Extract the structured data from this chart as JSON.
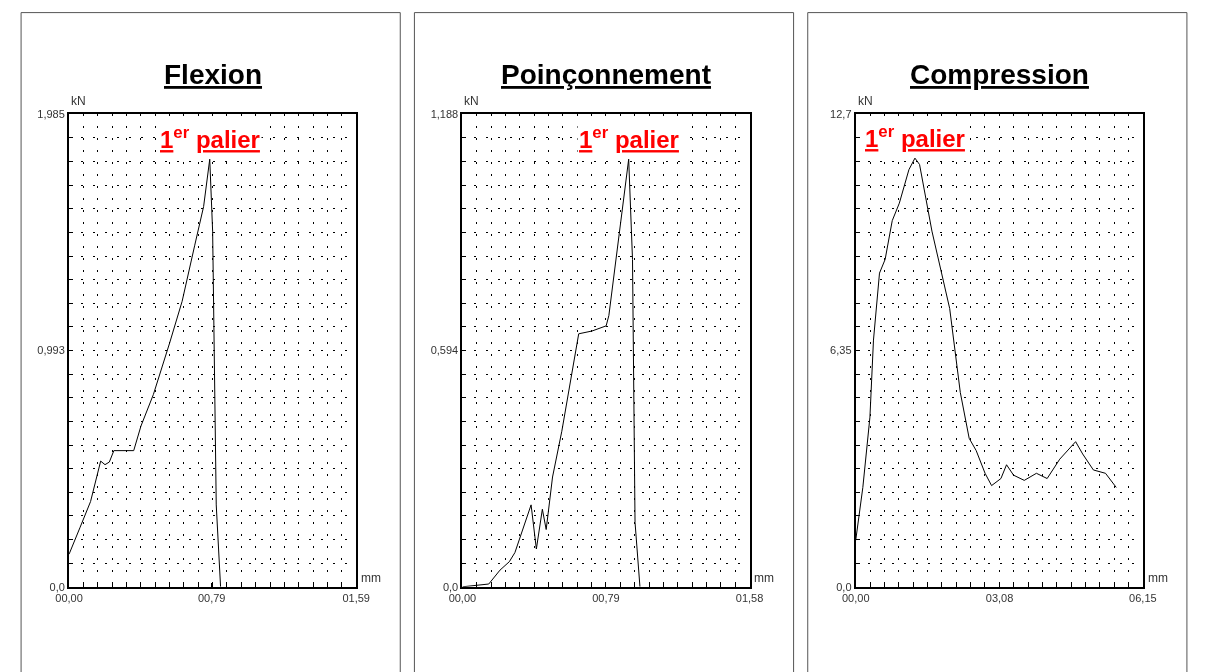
{
  "chart_data": [
    {
      "type": "line",
      "title": "Flexion",
      "xlabel": "mm",
      "ylabel": "kN",
      "grid": true,
      "xlim": [
        0,
        1.59
      ],
      "ylim": [
        0,
        1.985
      ],
      "xticks": [
        {
          "value": 0,
          "label": "00,00"
        },
        {
          "value": 0.79,
          "label": "00,79"
        },
        {
          "value": 1.59,
          "label": "01,59"
        }
      ],
      "yticks": [
        {
          "value": 0,
          "label": "0,0"
        },
        {
          "value": 0.993,
          "label": "0,993"
        },
        {
          "value": 1.985,
          "label": "1,985"
        }
      ],
      "annotations": [
        {
          "text": "1$^{er}$ palier",
          "x": 0.779,
          "y": 1.796
        }
      ],
      "series": [
        {
          "color": "#000000",
          "x": [
            0,
            0.06,
            0.119,
            0.175,
            0.199,
            0.223,
            0.248,
            0.358,
            0.398,
            0.467,
            0.556,
            0.626,
            0.696,
            0.745,
            0.779,
            0.795,
            0.815,
            0.839
          ],
          "values": [
            0.137,
            0.248,
            0.358,
            0.528,
            0.513,
            0.524,
            0.572,
            0.572,
            0.675,
            0.808,
            1.022,
            1.199,
            1.435,
            1.597,
            1.796,
            1.494,
            0.344,
            0
          ]
        }
      ]
    },
    {
      "type": "line",
      "title": "Poinçonnement",
      "xlabel": "mm",
      "ylabel": "kN",
      "grid": true,
      "xlim": [
        0,
        1.58
      ],
      "ylim": [
        0,
        1.188
      ],
      "xticks": [
        {
          "value": 0,
          "label": "00,00"
        },
        {
          "value": 0.79,
          "label": "00,79"
        },
        {
          "value": 1.58,
          "label": "01,58"
        }
      ],
      "yticks": [
        {
          "value": 0,
          "label": "0,0"
        },
        {
          "value": 0.594,
          "label": "0,594"
        },
        {
          "value": 1.188,
          "label": "1,188"
        }
      ],
      "annotations": [
        {
          "text": "1$^{er}$ palier",
          "x": 0.915,
          "y": 1.075
        }
      ],
      "series": [
        {
          "color": "#000000",
          "x": [
            0,
            0.145,
            0.207,
            0.258,
            0.289,
            0.378,
            0.407,
            0.44,
            0.461,
            0.496,
            0.547,
            0.64,
            0.713,
            0.791,
            0.806,
            0.915,
            0.936,
            0.95,
            0.977
          ],
          "values": [
            0,
            0.007,
            0.042,
            0.063,
            0.086,
            0.206,
            0.095,
            0.195,
            0.144,
            0.276,
            0.391,
            0.636,
            0.643,
            0.656,
            0.682,
            1.075,
            0.823,
            0.162,
            0
          ]
        }
      ]
    },
    {
      "type": "line",
      "title": "Compression",
      "xlabel": "mm",
      "ylabel": "kN",
      "grid": true,
      "xlim": [
        0,
        6.15
      ],
      "ylim": [
        0,
        12.7
      ],
      "xticks": [
        {
          "value": 0,
          "label": "00,00"
        },
        {
          "value": 3.08,
          "label": "03,08"
        },
        {
          "value": 6.15,
          "label": "06,15"
        }
      ],
      "yticks": [
        {
          "value": 0,
          "label": "0,0"
        },
        {
          "value": 6.35,
          "label": "6,35"
        },
        {
          "value": 12.7,
          "label": "12,7"
        }
      ],
      "annotations": [
        {
          "text": "1$^{er}$ palier",
          "x": 1.268,
          "y": 11.52
        }
      ],
      "series": [
        {
          "color": "#000000",
          "x": [
            0,
            0.152,
            0.304,
            0.38,
            0.509,
            0.63,
            0.782,
            0.934,
            1.139,
            1.268,
            1.367,
            1.632,
            2.012,
            2.24,
            2.43,
            2.58,
            2.77,
            2.91,
            3.11,
            3.23,
            3.38,
            3.61,
            3.87,
            4.1,
            4.37,
            4.71,
            4.86,
            5.09,
            5.35,
            5.58
          ],
          "values": [
            1.25,
            2.67,
            4.56,
            6.63,
            8.43,
            8.8,
            9.84,
            10.31,
            11.21,
            11.52,
            11.35,
            9.56,
            7.48,
            5.22,
            3.99,
            3.66,
            3.05,
            2.72,
            2.91,
            3.28,
            3.0,
            2.86,
            3.05,
            2.91,
            3.43,
            3.9,
            3.57,
            3.14,
            3.05,
            2.67
          ]
        }
      ]
    }
  ]
}
